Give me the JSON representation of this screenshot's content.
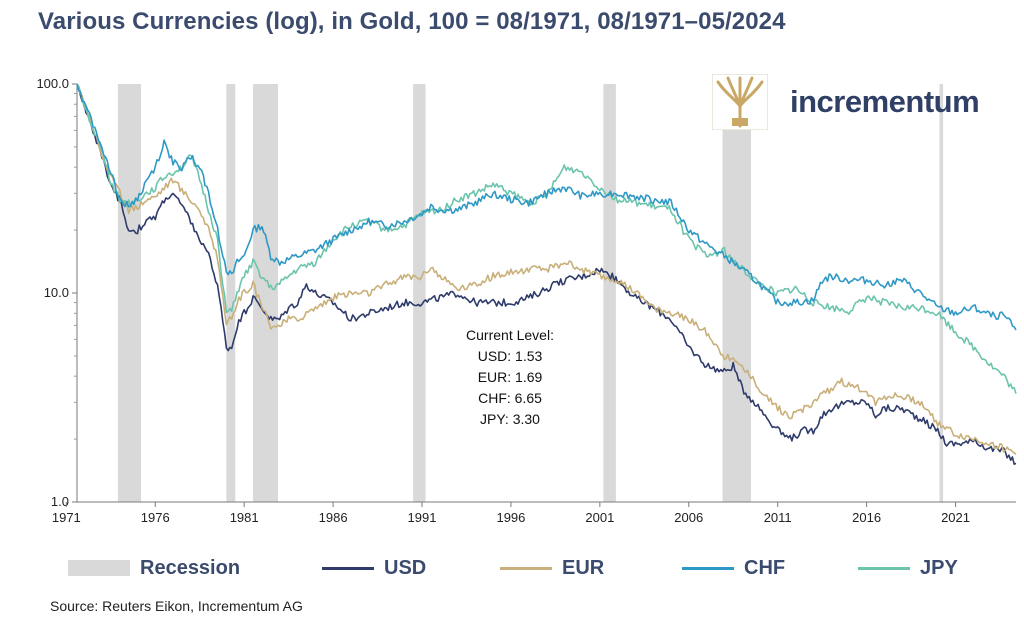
{
  "header": {
    "title": "Various Currencies (log), in Gold, 100 = 08/1971, 08/1971–05/2024"
  },
  "brand": {
    "name": "incrementum",
    "logo_icon": "tree-icon",
    "logo_color": "#c9a866",
    "text_color": "#2f3f66"
  },
  "legend": {
    "recession": "Recession",
    "usd": "USD",
    "eur": "EUR",
    "chf": "CHF",
    "jpy": "JPY"
  },
  "annotation": {
    "title": "Current Level:",
    "lines": [
      "USD: 1.53",
      "EUR: 1.69",
      "CHF: 6.65",
      "JPY: 3.30"
    ]
  },
  "source": "Source: Reuters Eikon, Incrementum AG",
  "chart_data": {
    "type": "line",
    "title": "Various Currencies (log), in Gold, 100 = 08/1971, 08/1971–05/2024",
    "xlabel": "",
    "ylabel": "",
    "y_scale": "log",
    "ylim": [
      1.0,
      100.0
    ],
    "xlim": [
      1971.6,
      2024.4
    ],
    "grid": false,
    "legend_position": "bottom",
    "y_ticks": [
      "1.0",
      "10.0",
      "100.0"
    ],
    "x_ticks": [
      "1971",
      "1976",
      "1981",
      "1986",
      "1991",
      "1996",
      "2001",
      "2006",
      "2011",
      "2016",
      "2021"
    ],
    "recessions": [
      [
        1973.9,
        1975.2
      ],
      [
        1980.0,
        1980.5
      ],
      [
        1981.5,
        1982.9
      ],
      [
        1990.5,
        1991.2
      ],
      [
        2001.2,
        2001.9
      ],
      [
        2007.9,
        2009.5
      ],
      [
        2020.1,
        2020.3
      ]
    ],
    "colors": {
      "recession": "#d9d9d9",
      "USD": "#2e3b6b",
      "EUR": "#c9b07a",
      "CHF": "#2f99c6",
      "JPY": "#6cc4ad"
    },
    "series": [
      {
        "name": "USD",
        "points": [
          [
            1971.6,
            100
          ],
          [
            1972.0,
            80
          ],
          [
            1972.5,
            60
          ],
          [
            1973.0,
            45
          ],
          [
            1973.5,
            32
          ],
          [
            1974.0,
            28
          ],
          [
            1974.5,
            20
          ],
          [
            1975.0,
            20
          ],
          [
            1975.5,
            22
          ],
          [
            1976.0,
            23
          ],
          [
            1976.5,
            28
          ],
          [
            1977.0,
            30
          ],
          [
            1977.5,
            26
          ],
          [
            1978.0,
            22
          ],
          [
            1978.5,
            18
          ],
          [
            1979.0,
            15
          ],
          [
            1979.5,
            11
          ],
          [
            1980.0,
            5.5
          ],
          [
            1980.3,
            5.5
          ],
          [
            1980.6,
            7
          ],
          [
            1981.0,
            8
          ],
          [
            1981.5,
            9.5
          ],
          [
            1982.0,
            8.5
          ],
          [
            1982.5,
            7.5
          ],
          [
            1983.0,
            7.5
          ],
          [
            1983.5,
            8.5
          ],
          [
            1984.0,
            9
          ],
          [
            1984.5,
            11
          ],
          [
            1985.0,
            10
          ],
          [
            1985.5,
            9.5
          ],
          [
            1986.0,
            9
          ],
          [
            1987.0,
            7.5
          ],
          [
            1988.0,
            8
          ],
          [
            1989.0,
            8.5
          ],
          [
            1990.0,
            9
          ],
          [
            1991.0,
            9
          ],
          [
            1992.0,
            9.5
          ],
          [
            1993.0,
            10
          ],
          [
            1994.0,
            9
          ],
          [
            1995.0,
            9
          ],
          [
            1996.0,
            9
          ],
          [
            1997.0,
            9.5
          ],
          [
            1998.0,
            10.5
          ],
          [
            1999.0,
            11.5
          ],
          [
            2000.0,
            12
          ],
          [
            2001.0,
            13
          ],
          [
            2002.0,
            11.5
          ],
          [
            2003.0,
            9.5
          ],
          [
            2004.0,
            8.5
          ],
          [
            2005.0,
            7.5
          ],
          [
            2006.0,
            5.5
          ],
          [
            2007.0,
            4.5
          ],
          [
            2008.0,
            4.2
          ],
          [
            2008.5,
            4.5
          ],
          [
            2009.0,
            3.5
          ],
          [
            2010.0,
            2.8
          ],
          [
            2011.0,
            2.2
          ],
          [
            2011.7,
            2.0
          ],
          [
            2012.5,
            2.2
          ],
          [
            2013.0,
            2.2
          ],
          [
            2013.5,
            2.6
          ],
          [
            2014.0,
            2.8
          ],
          [
            2015.0,
            3.0
          ],
          [
            2016.0,
            3.0
          ],
          [
            2016.5,
            2.6
          ],
          [
            2017.0,
            2.8
          ],
          [
            2018.0,
            2.8
          ],
          [
            2019.0,
            2.5
          ],
          [
            2020.0,
            2.2
          ],
          [
            2020.5,
            1.9
          ],
          [
            2021.0,
            1.9
          ],
          [
            2022.0,
            1.95
          ],
          [
            2023.0,
            1.8
          ],
          [
            2023.7,
            1.75
          ],
          [
            2024.4,
            1.53
          ]
        ]
      },
      {
        "name": "EUR",
        "points": [
          [
            1971.6,
            100
          ],
          [
            1972.0,
            82
          ],
          [
            1972.5,
            62
          ],
          [
            1973.0,
            46
          ],
          [
            1973.5,
            36
          ],
          [
            1974.0,
            30
          ],
          [
            1974.5,
            25
          ],
          [
            1975.0,
            26
          ],
          [
            1975.5,
            28
          ],
          [
            1976.0,
            29
          ],
          [
            1976.5,
            32
          ],
          [
            1977.0,
            35
          ],
          [
            1977.5,
            31
          ],
          [
            1978.0,
            28
          ],
          [
            1978.5,
            25
          ],
          [
            1979.0,
            20
          ],
          [
            1979.5,
            15
          ],
          [
            1980.0,
            7.2
          ],
          [
            1980.3,
            7.5
          ],
          [
            1980.6,
            9
          ],
          [
            1981.0,
            10
          ],
          [
            1981.5,
            11
          ],
          [
            1982.0,
            8.5
          ],
          [
            1982.5,
            7.0
          ],
          [
            1983.0,
            7.0
          ],
          [
            1983.5,
            7.5
          ],
          [
            1984.0,
            7.5
          ],
          [
            1985.0,
            8.5
          ],
          [
            1986.0,
            9.5
          ],
          [
            1987.0,
            10
          ],
          [
            1988.0,
            10
          ],
          [
            1989.0,
            11
          ],
          [
            1990.0,
            12
          ],
          [
            1991.0,
            12
          ],
          [
            1991.5,
            13.5
          ],
          [
            1992.0,
            12
          ],
          [
            1993.0,
            10.5
          ],
          [
            1994.0,
            11
          ],
          [
            1995.0,
            12
          ],
          [
            1996.0,
            12.5
          ],
          [
            1997.0,
            13
          ],
          [
            1998.0,
            13
          ],
          [
            1999.0,
            14
          ],
          [
            2000.0,
            13
          ],
          [
            2001.0,
            12
          ],
          [
            2002.0,
            11.5
          ],
          [
            2003.0,
            10
          ],
          [
            2004.0,
            8.5
          ],
          [
            2005.0,
            8
          ],
          [
            2006.0,
            7.5
          ],
          [
            2007.0,
            6.5
          ],
          [
            2008.0,
            5
          ],
          [
            2009.0,
            4.5
          ],
          [
            2010.0,
            3.5
          ],
          [
            2011.0,
            2.8
          ],
          [
            2011.7,
            2.6
          ],
          [
            2012.5,
            2.8
          ],
          [
            2013.0,
            3.0
          ],
          [
            2014.0,
            3.5
          ],
          [
            2014.5,
            3.8
          ],
          [
            2015.0,
            3.6
          ],
          [
            2016.0,
            3.4
          ],
          [
            2016.5,
            3.0
          ],
          [
            2017.0,
            3.2
          ],
          [
            2018.0,
            3.2
          ],
          [
            2019.0,
            3.0
          ],
          [
            2020.0,
            2.4
          ],
          [
            2021.0,
            2.1
          ],
          [
            2022.0,
            2.0
          ],
          [
            2023.0,
            1.9
          ],
          [
            2023.7,
            1.8
          ],
          [
            2024.4,
            1.69
          ]
        ]
      },
      {
        "name": "CHF",
        "points": [
          [
            1971.6,
            100
          ],
          [
            1972.0,
            82
          ],
          [
            1972.5,
            64
          ],
          [
            1973.0,
            50
          ],
          [
            1973.5,
            38
          ],
          [
            1974.0,
            28
          ],
          [
            1974.5,
            26
          ],
          [
            1975.0,
            28
          ],
          [
            1975.5,
            34
          ],
          [
            1976.0,
            40
          ],
          [
            1976.5,
            52
          ],
          [
            1977.0,
            42
          ],
          [
            1977.5,
            40
          ],
          [
            1978.0,
            45
          ],
          [
            1978.5,
            40
          ],
          [
            1979.0,
            30
          ],
          [
            1979.5,
            20
          ],
          [
            1980.0,
            13
          ],
          [
            1980.3,
            12
          ],
          [
            1980.6,
            14
          ],
          [
            1981.0,
            15
          ],
          [
            1981.5,
            20
          ],
          [
            1982.0,
            21
          ],
          [
            1982.5,
            15
          ],
          [
            1983.0,
            14
          ],
          [
            1983.5,
            14.5
          ],
          [
            1984.0,
            15
          ],
          [
            1985.0,
            16
          ],
          [
            1986.0,
            18
          ],
          [
            1987.0,
            20
          ],
          [
            1988.0,
            22
          ],
          [
            1989.0,
            21
          ],
          [
            1990.0,
            22
          ],
          [
            1991.0,
            24
          ],
          [
            1991.5,
            26
          ],
          [
            1992.0,
            25
          ],
          [
            1993.0,
            25
          ],
          [
            1994.0,
            27
          ],
          [
            1995.0,
            30
          ],
          [
            1996.0,
            28
          ],
          [
            1997.0,
            27
          ],
          [
            1998.0,
            30
          ],
          [
            1999.0,
            32
          ],
          [
            2000.0,
            29
          ],
          [
            2001.0,
            30
          ],
          [
            2002.0,
            30
          ],
          [
            2003.0,
            29
          ],
          [
            2004.0,
            28
          ],
          [
            2005.0,
            27
          ],
          [
            2006.0,
            20
          ],
          [
            2007.0,
            17
          ],
          [
            2008.0,
            15
          ],
          [
            2008.5,
            14
          ],
          [
            2009.0,
            13
          ],
          [
            2010.0,
            11
          ],
          [
            2011.0,
            9
          ],
          [
            2012.0,
            9
          ],
          [
            2013.0,
            9.2
          ],
          [
            2013.5,
            11.5
          ],
          [
            2014.0,
            12
          ],
          [
            2015.0,
            11.5
          ],
          [
            2016.0,
            11.5
          ],
          [
            2017.0,
            11
          ],
          [
            2018.0,
            11.5
          ],
          [
            2019.0,
            10
          ],
          [
            2020.0,
            8.5
          ],
          [
            2021.0,
            8
          ],
          [
            2022.0,
            8.5
          ],
          [
            2023.0,
            7.8
          ],
          [
            2023.7,
            7.8
          ],
          [
            2024.4,
            6.65
          ]
        ]
      },
      {
        "name": "JPY",
        "points": [
          [
            1971.6,
            100
          ],
          [
            1972.0,
            80
          ],
          [
            1972.5,
            62
          ],
          [
            1973.0,
            48
          ],
          [
            1973.5,
            34
          ],
          [
            1974.0,
            28
          ],
          [
            1974.5,
            27
          ],
          [
            1975.0,
            28
          ],
          [
            1975.5,
            30
          ],
          [
            1976.0,
            32
          ],
          [
            1976.5,
            36
          ],
          [
            1977.0,
            38
          ],
          [
            1977.5,
            40
          ],
          [
            1978.0,
            45
          ],
          [
            1978.5,
            35
          ],
          [
            1979.0,
            25
          ],
          [
            1979.5,
            18
          ],
          [
            1980.0,
            8
          ],
          [
            1980.3,
            8.5
          ],
          [
            1980.6,
            10
          ],
          [
            1981.0,
            12
          ],
          [
            1981.5,
            14
          ],
          [
            1982.0,
            12
          ],
          [
            1982.5,
            10.5
          ],
          [
            1983.0,
            11
          ],
          [
            1983.5,
            12
          ],
          [
            1984.0,
            13
          ],
          [
            1985.0,
            14
          ],
          [
            1986.0,
            18
          ],
          [
            1987.0,
            21
          ],
          [
            1988.0,
            22
          ],
          [
            1989.0,
            20
          ],
          [
            1990.0,
            21
          ],
          [
            1991.0,
            24
          ],
          [
            1992.0,
            25
          ],
          [
            1993.0,
            28
          ],
          [
            1994.0,
            30
          ],
          [
            1995.0,
            33
          ],
          [
            1996.0,
            30
          ],
          [
            1997.0,
            27
          ],
          [
            1998.0,
            29
          ],
          [
            1999.0,
            40
          ],
          [
            2000.0,
            38
          ],
          [
            2001.0,
            32
          ],
          [
            2002.0,
            28
          ],
          [
            2003.0,
            27
          ],
          [
            2004.0,
            26
          ],
          [
            2005.0,
            25
          ],
          [
            2006.0,
            18
          ],
          [
            2007.0,
            15
          ],
          [
            2008.0,
            16
          ],
          [
            2008.5,
            14
          ],
          [
            2009.0,
            13
          ],
          [
            2010.0,
            11
          ],
          [
            2011.0,
            10
          ],
          [
            2012.0,
            10.5
          ],
          [
            2013.0,
            9
          ],
          [
            2014.0,
            8.5
          ],
          [
            2015.0,
            8.2
          ],
          [
            2016.0,
            9.5
          ],
          [
            2017.0,
            9
          ],
          [
            2018.0,
            8.5
          ],
          [
            2019.0,
            8.5
          ],
          [
            2020.0,
            8
          ],
          [
            2021.0,
            6.5
          ],
          [
            2022.0,
            5.5
          ],
          [
            2023.0,
            4.5
          ],
          [
            2023.7,
            4.0
          ],
          [
            2024.4,
            3.3
          ]
        ]
      }
    ]
  }
}
